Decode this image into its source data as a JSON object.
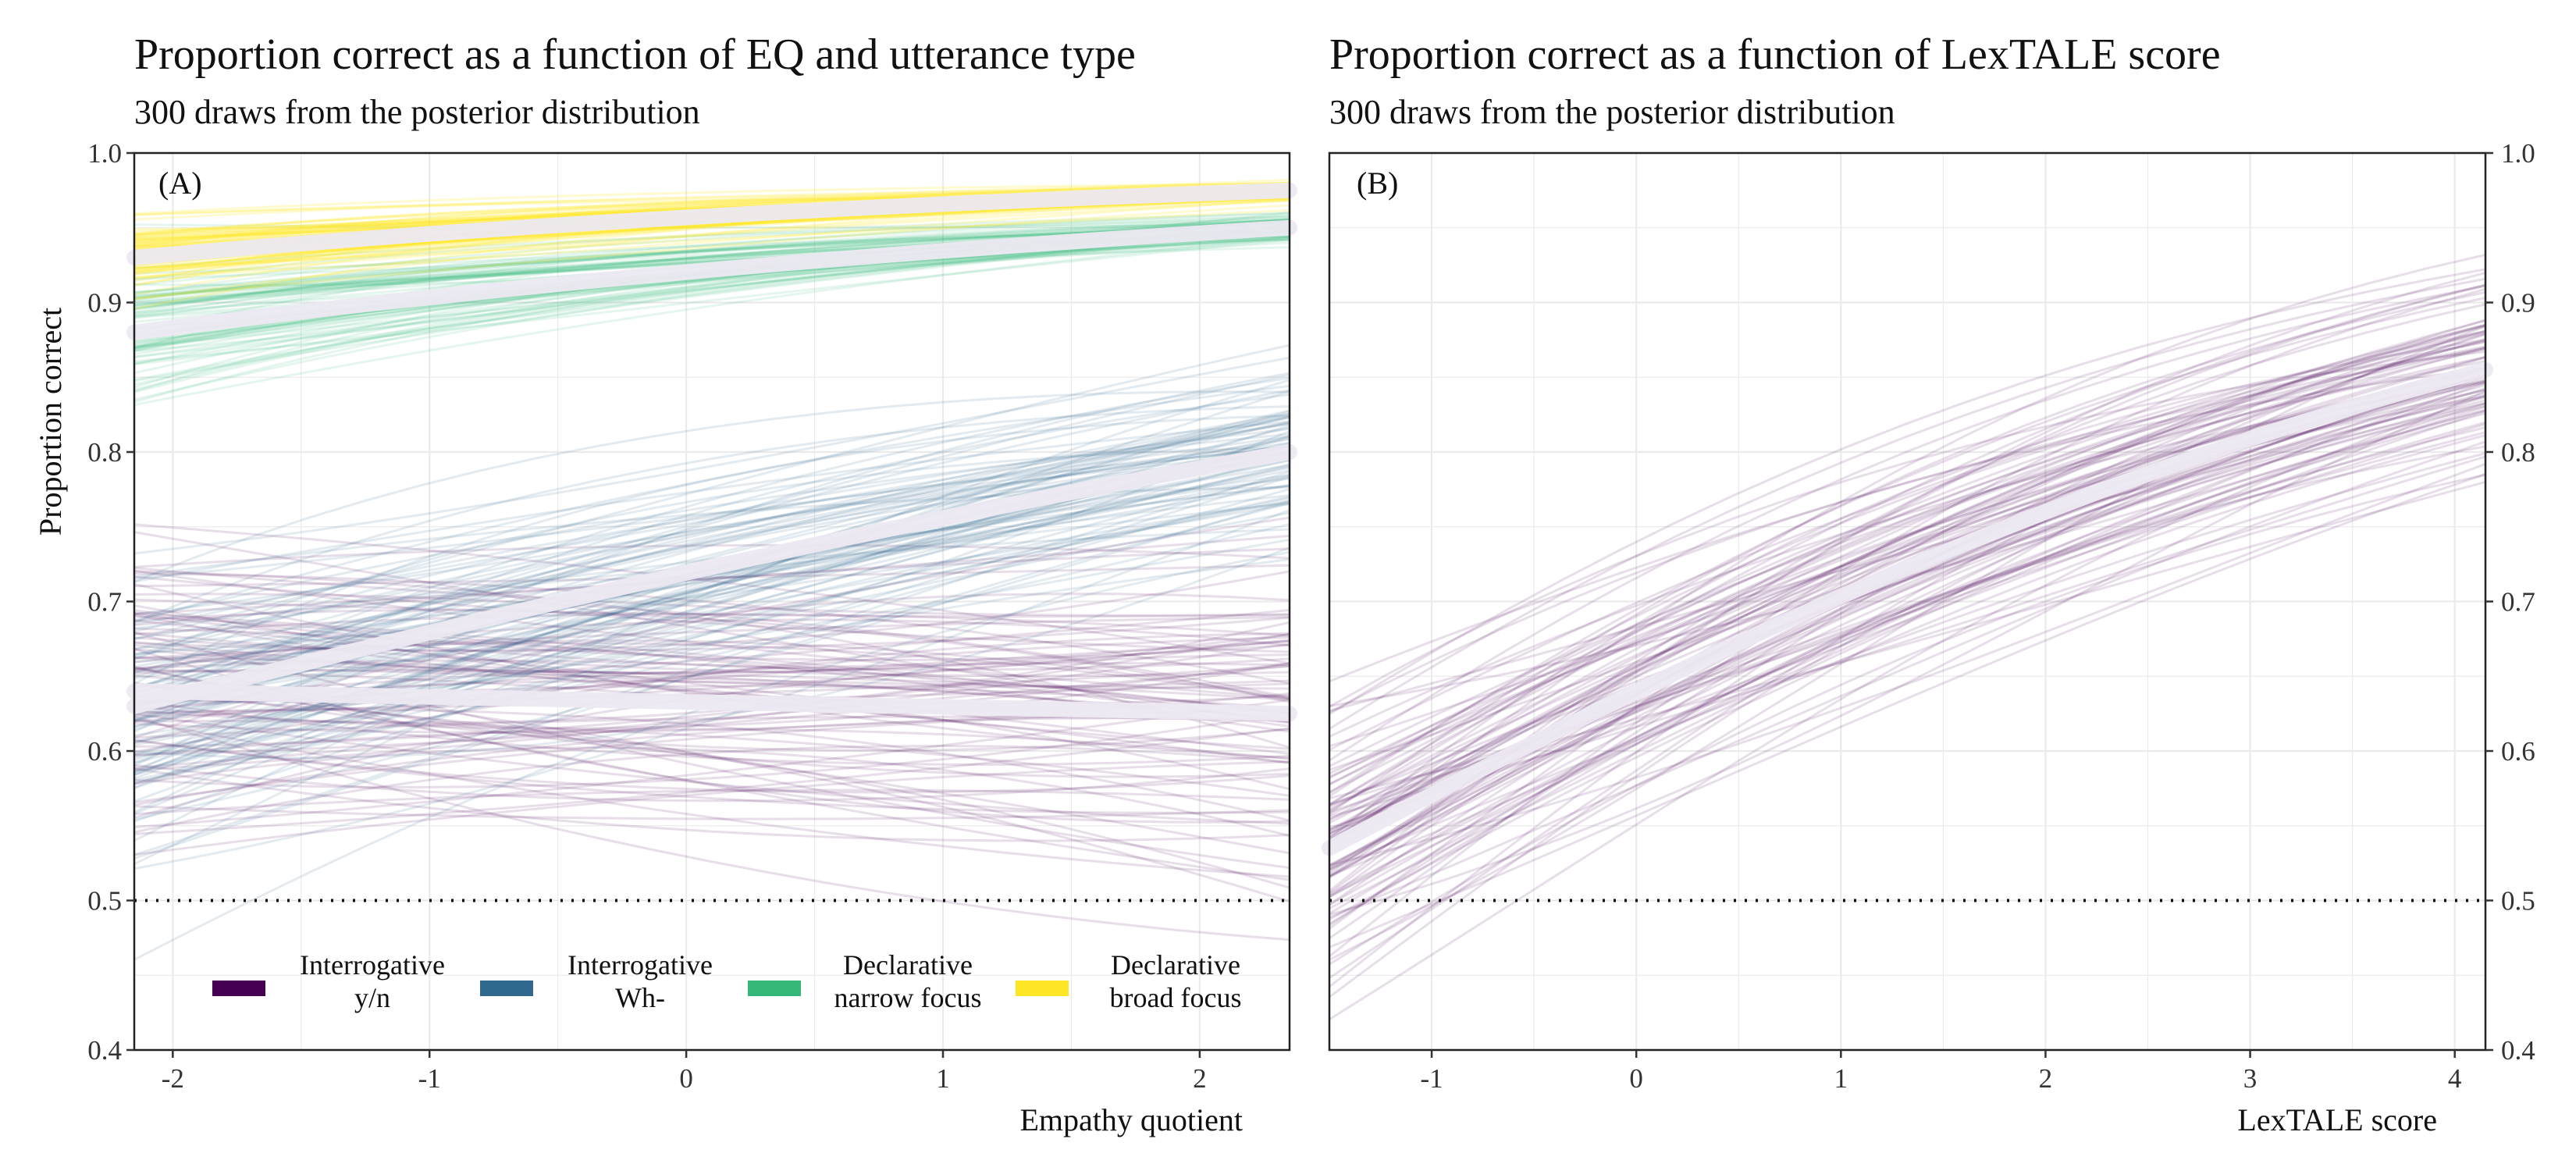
{
  "chart_data": [
    {
      "type": "line",
      "panel_label": "(A)",
      "title": "Proportion correct as a function of EQ and utterance type",
      "subtitle": "300 draws from the posterior distribution",
      "xlabel": "Empathy quotient",
      "ylabel": "Proportion correct",
      "xlim": [
        -2.15,
        2.35
      ],
      "ylim": [
        0.4,
        1.0
      ],
      "x_ticks": [
        "-2",
        "-1",
        "0",
        "1",
        "2"
      ],
      "y_ticks": [
        "0.4",
        "0.5",
        "0.6",
        "0.7",
        "0.8",
        "0.9",
        "1.0"
      ],
      "reference_line": 0.5,
      "grid": true,
      "legend_position": "bottom-inside",
      "series": [
        {
          "name": "Interrogative y/n",
          "legend_lines": [
            "Interrogative",
            "y/n"
          ],
          "color": "#440154",
          "x": [
            -2.15,
            2.35
          ],
          "mean": [
            0.64,
            0.625
          ],
          "draw_spread": [
            0.055,
            0.07
          ]
        },
        {
          "name": "Interrogative Wh-",
          "legend_lines": [
            "Interrogative",
            "Wh-"
          ],
          "color": "#31688e",
          "x": [
            -2.15,
            2.35
          ],
          "mean": [
            0.63,
            0.8
          ],
          "draw_spread": [
            0.05,
            0.035
          ]
        },
        {
          "name": "Declarative narrow focus",
          "legend_lines": [
            "Declarative",
            "narrow focus"
          ],
          "color": "#35b779",
          "x": [
            -2.15,
            2.35
          ],
          "mean": [
            0.88,
            0.95
          ],
          "draw_spread": [
            0.022,
            0.006
          ]
        },
        {
          "name": "Declarative broad focus",
          "legend_lines": [
            "Declarative",
            "broad focus"
          ],
          "color": "#fde725",
          "x": [
            -2.15,
            2.35
          ],
          "mean": [
            0.93,
            0.975
          ],
          "draw_spread": [
            0.012,
            0.004
          ]
        }
      ]
    },
    {
      "type": "line",
      "panel_label": "(B)",
      "title": "Proportion correct as a function of LexTALE score",
      "subtitle": "300 draws from the posterior distribution",
      "xlabel": "LexTALE score",
      "ylabel": "",
      "xlim": [
        -1.5,
        4.15
      ],
      "ylim": [
        0.4,
        1.0
      ],
      "x_ticks": [
        "-1",
        "0",
        "1",
        "2",
        "3",
        "4"
      ],
      "y_ticks": [
        "0.4",
        "0.5",
        "0.6",
        "0.7",
        "0.8",
        "0.9",
        "1.0"
      ],
      "reference_line": 0.5,
      "grid": true,
      "series": [
        {
          "name": "",
          "color": "#440154",
          "x": [
            -1.5,
            4.15
          ],
          "mean": [
            0.535,
            0.855
          ],
          "draw_spread": [
            0.055,
            0.045
          ]
        }
      ]
    }
  ]
}
